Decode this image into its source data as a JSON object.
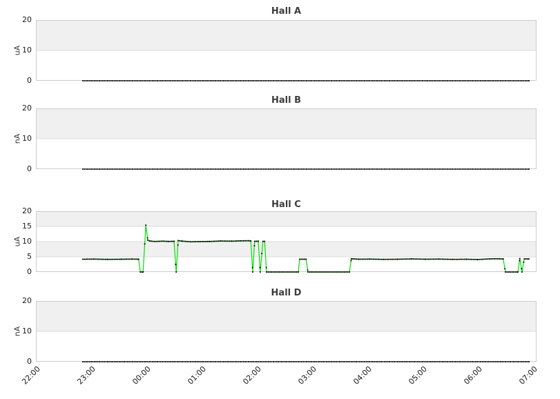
{
  "colors": {
    "band_gray": "#f0f0f0",
    "band_white": "#ffffff",
    "plot_border": "#cccccc",
    "gridline": "#dddddd",
    "series_line_green": "#00dd00",
    "marker_black": "#000000",
    "title_text": "#3d3d3d",
    "tick_text": "#1a1a1a"
  },
  "x_axis": {
    "tick_labels": [
      "22:00",
      "23:00",
      "00:00",
      "01:00",
      "02:00",
      "03:00",
      "04:00",
      "05:00",
      "06:00",
      "07:00"
    ]
  },
  "chart_data": [
    {
      "type": "line",
      "title": "Hall A",
      "ylabel": "uA",
      "yticks": [
        0,
        10,
        20
      ],
      "ylim": [
        0,
        20
      ],
      "grid": true,
      "legend": "none",
      "line_visible": false,
      "series_name": "hall-a-current",
      "points": [
        [
          1.0,
          0
        ],
        [
          9.075,
          0
        ]
      ]
    },
    {
      "type": "line",
      "title": "Hall B",
      "ylabel": "nA",
      "yticks": [
        0,
        10,
        20
      ],
      "ylim": [
        0,
        20
      ],
      "grid": true,
      "legend": "none",
      "line_visible": false,
      "series_name": "hall-b-current",
      "points": [
        [
          1.0,
          0
        ],
        [
          9.075,
          0
        ]
      ]
    },
    {
      "type": "line",
      "title": "Hall C",
      "ylabel": "uA",
      "yticks": [
        0,
        5,
        10,
        15,
        20
      ],
      "ylim": [
        0,
        20
      ],
      "grid": true,
      "legend": "none",
      "line_visible": true,
      "series_name": "hall-c-current",
      "points": [
        [
          1.0,
          4.2
        ],
        [
          1.2,
          4.25
        ],
        [
          1.45,
          4.15
        ],
        [
          1.7,
          4.2
        ],
        [
          1.9,
          4.25
        ],
        [
          2.01,
          4.2
        ],
        [
          2.04,
          0
        ],
        [
          2.09,
          0
        ],
        [
          2.14,
          15.4
        ],
        [
          2.175,
          10.5
        ],
        [
          2.21,
          10.2
        ],
        [
          2.3,
          10.05
        ],
        [
          2.45,
          10.15
        ],
        [
          2.55,
          10.05
        ],
        [
          2.65,
          10.1
        ],
        [
          2.69,
          0
        ],
        [
          2.725,
          10.35
        ],
        [
          2.8,
          10.15
        ],
        [
          2.95,
          9.95
        ],
        [
          3.1,
          10.0
        ],
        [
          3.3,
          10.05
        ],
        [
          3.5,
          10.2
        ],
        [
          3.7,
          10.15
        ],
        [
          3.85,
          10.25
        ],
        [
          4.0,
          10.3
        ],
        [
          4.04,
          10.2
        ],
        [
          4.075,
          0
        ],
        [
          4.11,
          10.1
        ],
        [
          4.175,
          10.15
        ],
        [
          4.21,
          0
        ],
        [
          4.26,
          10.1
        ],
        [
          4.29,
          10.1
        ],
        [
          4.325,
          0
        ],
        [
          4.9,
          0
        ],
        [
          4.925,
          4.2
        ],
        [
          5.04,
          4.2
        ],
        [
          5.075,
          0
        ],
        [
          5.825,
          0
        ],
        [
          5.86,
          4.35
        ],
        [
          6.0,
          4.2
        ],
        [
          6.2,
          4.25
        ],
        [
          6.45,
          4.15
        ],
        [
          6.7,
          4.2
        ],
        [
          6.95,
          4.3
        ],
        [
          7.2,
          4.2
        ],
        [
          7.45,
          4.25
        ],
        [
          7.7,
          4.15
        ],
        [
          7.95,
          4.2
        ],
        [
          8.15,
          4.1
        ],
        [
          8.3,
          4.25
        ],
        [
          8.45,
          4.35
        ],
        [
          8.61,
          4.3
        ],
        [
          8.65,
          0
        ],
        [
          8.875,
          0
        ],
        [
          8.91,
          4.4
        ],
        [
          8.95,
          0
        ],
        [
          8.99,
          4.3
        ],
        [
          9.075,
          4.3
        ]
      ]
    },
    {
      "type": "line",
      "title": "Hall D",
      "ylabel": "nA",
      "yticks": [
        0,
        10,
        20
      ],
      "ylim": [
        0,
        20
      ],
      "grid": true,
      "legend": "none",
      "line_visible": false,
      "series_name": "hall-d-current",
      "points": [
        [
          1.0,
          0
        ],
        [
          9.075,
          0
        ]
      ]
    }
  ]
}
